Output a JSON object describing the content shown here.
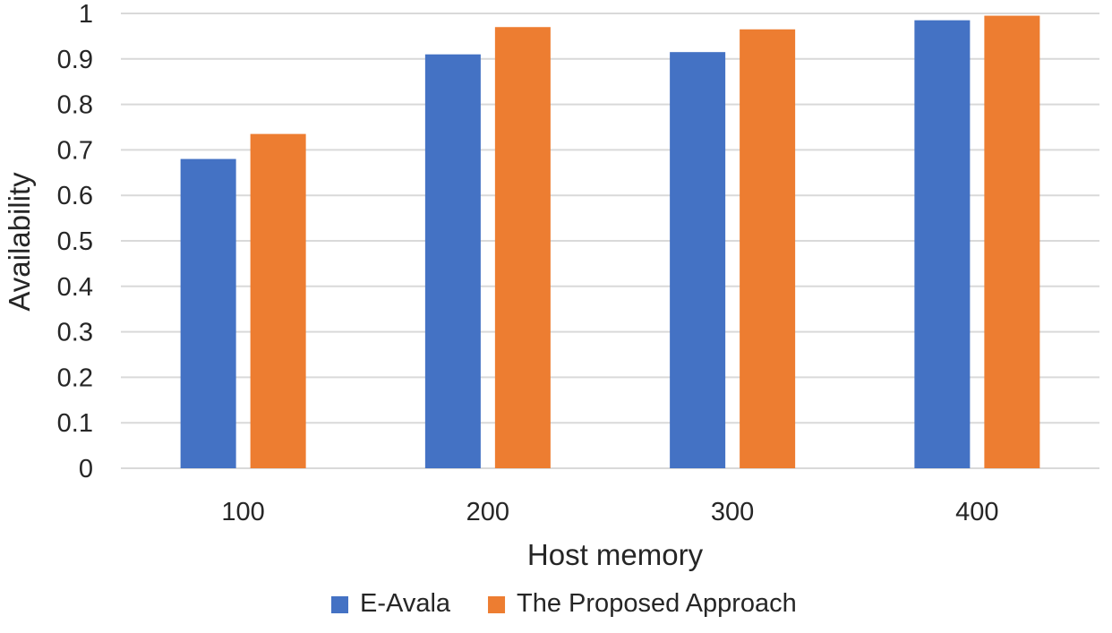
{
  "chart_data": {
    "type": "bar",
    "title": "",
    "xlabel": "Host memory",
    "ylabel": "Availability",
    "categories": [
      "100",
      "200",
      "300",
      "400"
    ],
    "series": [
      {
        "name": "E-Avala",
        "color": "#4472C4",
        "values": [
          0.68,
          0.91,
          0.915,
          0.985
        ]
      },
      {
        "name": "The Proposed Approach",
        "color": "#ED7D31",
        "values": [
          0.735,
          0.97,
          0.965,
          0.995
        ]
      }
    ],
    "ylim": [
      0,
      1
    ],
    "yticks": [
      "0",
      "0.1",
      "0.2",
      "0.3",
      "0.4",
      "0.5",
      "0.6",
      "0.7",
      "0.8",
      "0.9",
      "1"
    ],
    "grid": true,
    "legend_position": "bottom-center"
  }
}
